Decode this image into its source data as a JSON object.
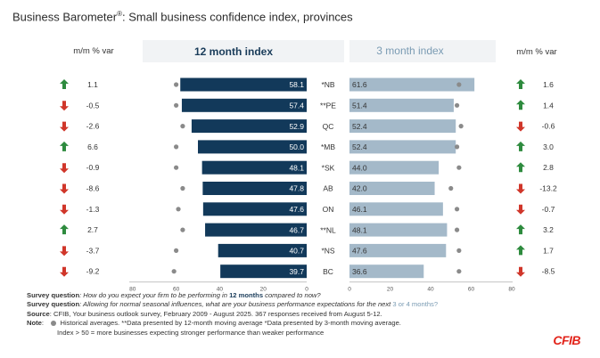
{
  "title": {
    "main": "Business Barometer",
    "reg": "®",
    "rest": ": Small business confidence index, provinces"
  },
  "headers": {
    "left_var": "m/m % var",
    "index_12": "12 month index",
    "index_3": "3 month index",
    "right_var": "m/m % var"
  },
  "colors": {
    "bar_12": "#12395a",
    "bar_3": "#a4b9c9",
    "up_arrow": "#2e8b3e",
    "down_arrow": "#d0362a",
    "dot": "#8a8a8a",
    "header_3": "#7a9bb3"
  },
  "chart_data": {
    "type": "bar",
    "title": "Business Barometer®: Small business confidence index, provinces",
    "categories": [
      "*NB",
      "**PE",
      "QC",
      "*MB",
      "*SK",
      "AB",
      "ON",
      "**NL",
      "*NS",
      "BC"
    ],
    "series": [
      {
        "name": "12 month index",
        "values": [
          58.1,
          57.4,
          52.9,
          50.0,
          48.1,
          47.8,
          47.6,
          46.7,
          40.7,
          39.7
        ],
        "labels": [
          "58.1",
          "57.4",
          "52.9",
          "50.0",
          "48.1",
          "47.8",
          "47.6",
          "46.7",
          "40.7",
          "39.7"
        ],
        "historical_avg": [
          60,
          60,
          57,
          60,
          60,
          57,
          59,
          57,
          60,
          61
        ],
        "mm_var": [
          "1.1",
          "-0.5",
          "-2.6",
          "6.6",
          "-0.9",
          "-8.6",
          "-1.3",
          "2.7",
          "-3.7",
          "-9.2"
        ],
        "direction": [
          "up",
          "down",
          "down",
          "up",
          "down",
          "down",
          "down",
          "up",
          "down",
          "down"
        ]
      },
      {
        "name": "3 month index",
        "values": [
          61.6,
          51.4,
          52.4,
          52.4,
          44.0,
          42.0,
          46.1,
          48.1,
          47.6,
          36.6
        ],
        "labels": [
          "61.6",
          "51.4",
          "52.4",
          "52.4",
          "44.0",
          "42.0",
          "46.1",
          "48.1",
          "47.6",
          "36.6"
        ],
        "historical_avg": [
          54,
          53,
          55,
          53,
          54,
          50,
          53,
          53,
          54,
          54
        ],
        "mm_var": [
          "1.6",
          "1.4",
          "-0.6",
          "3.0",
          "2.8",
          "-13.2",
          "-0.7",
          "3.2",
          "1.7",
          "-8.5"
        ],
        "direction": [
          "up",
          "up",
          "down",
          "up",
          "up",
          "down",
          "down",
          "up",
          "up",
          "down"
        ]
      }
    ],
    "axis_left": {
      "ticks": [
        "80",
        "60",
        "40",
        "20",
        "0"
      ],
      "ylim": [
        0,
        80
      ],
      "reversed": true
    },
    "axis_right": {
      "ticks": [
        "0",
        "20",
        "40",
        "60",
        "80"
      ],
      "ylim": [
        0,
        80
      ]
    },
    "legend": "none",
    "grid": false
  },
  "notes": {
    "q1_label": "Survey question",
    "q1_text_a": ": How do you expect your firm to be performing in ",
    "q1_hl": "12 months",
    "q1_text_b": " compared to now?",
    "q2_label": "Survey question",
    "q2_text_a": ": Allowing for normal seasonal influences, what are your business performance expectations for the next ",
    "q2_hl": "3 or 4 months?",
    "source_label": "Source",
    "source_text": ": CFIB, Your business outlook survey, February 2009 - August 2025. 367 responses received from August 5-12.",
    "note_label": "Note",
    "note_text_a": ":",
    "note_text_b": "Historical averages. **Data presented by 12-month moving average *Data presented by 3-month moving average.",
    "note_line2": "Index > 50 = more businesses expecting stronger performance than weaker performance"
  },
  "logo": "CFIB"
}
